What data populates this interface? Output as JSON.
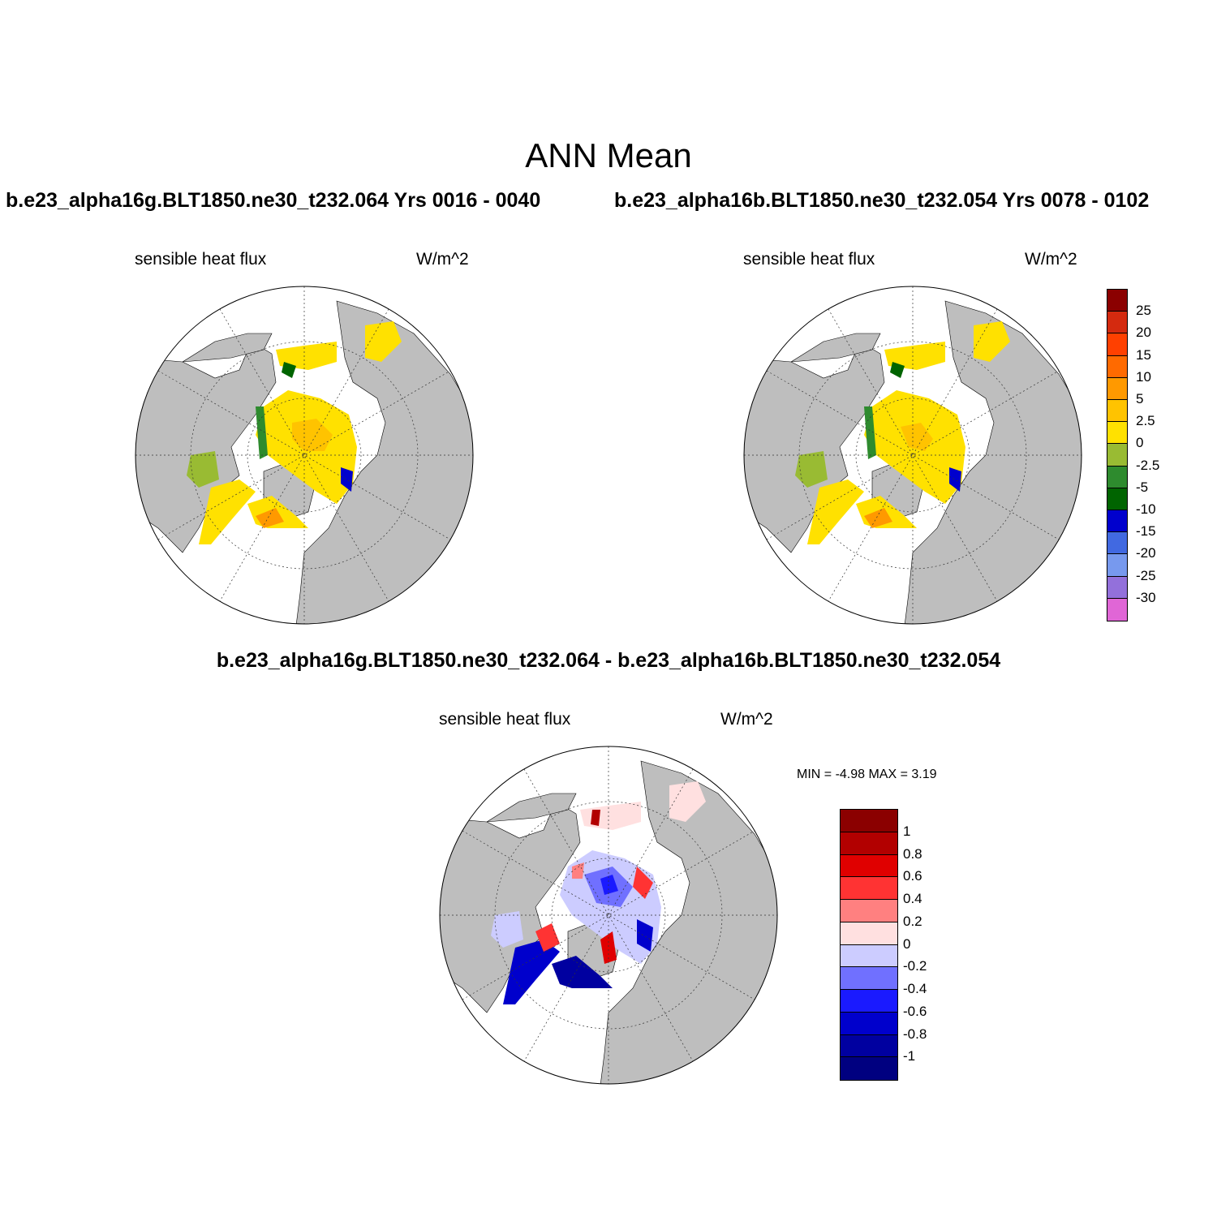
{
  "main_title": "ANN Mean",
  "case1_title": "b.e23_alpha16g.BLT1850.ne30_t232.064  Yrs 0016 - 0040",
  "case2_title": "b.e23_alpha16b.BLT1850.ne30_t232.054  Yrs 0078 - 0102",
  "diff_title": "b.e23_alpha16g.BLT1850.ne30_t232.064 - b.e23_alpha16b.BLT1850.ne30_t232.054",
  "panels": [
    {
      "variable": "sensible heat flux",
      "units": "W/m^2"
    },
    {
      "variable": "sensible heat flux",
      "units": "W/m^2"
    },
    {
      "variable": "sensible heat flux",
      "units": "W/m^2"
    }
  ],
  "diff_stats": {
    "text": "MIN =  -4.98 MAX =   3.19",
    "min": -4.98,
    "max": 3.19
  },
  "colorbar_abs": {
    "labels": [
      "25",
      "20",
      "15",
      "10",
      "5",
      "2.5",
      "0",
      "-2.5",
      "-5",
      "-10",
      "-15",
      "-20",
      "-25",
      "-30"
    ],
    "colors": [
      "#8b0000",
      "#d42a0f",
      "#ff4000",
      "#ff6a00",
      "#ff9900",
      "#ffc300",
      "#ffe100",
      "#99bb33",
      "#2e8b2e",
      "#006400",
      "#0000cd",
      "#4169e1",
      "#7799ee",
      "#9370db",
      "#e066d6"
    ]
  },
  "colorbar_diff": {
    "labels": [
      "1",
      "0.8",
      "0.6",
      "0.4",
      "0.2",
      "0",
      "-0.2",
      "-0.4",
      "-0.6",
      "-0.8",
      "-1"
    ],
    "colors": [
      "#8b0000",
      "#b20000",
      "#e00000",
      "#ff3333",
      "#ff8080",
      "#ffe0e0",
      "#ccccff",
      "#7070ff",
      "#1a1aff",
      "#0000cc",
      "#0000a0",
      "#000080"
    ]
  },
  "land_color": "#bebebe",
  "map_projection": "north-polar-stereographic"
}
